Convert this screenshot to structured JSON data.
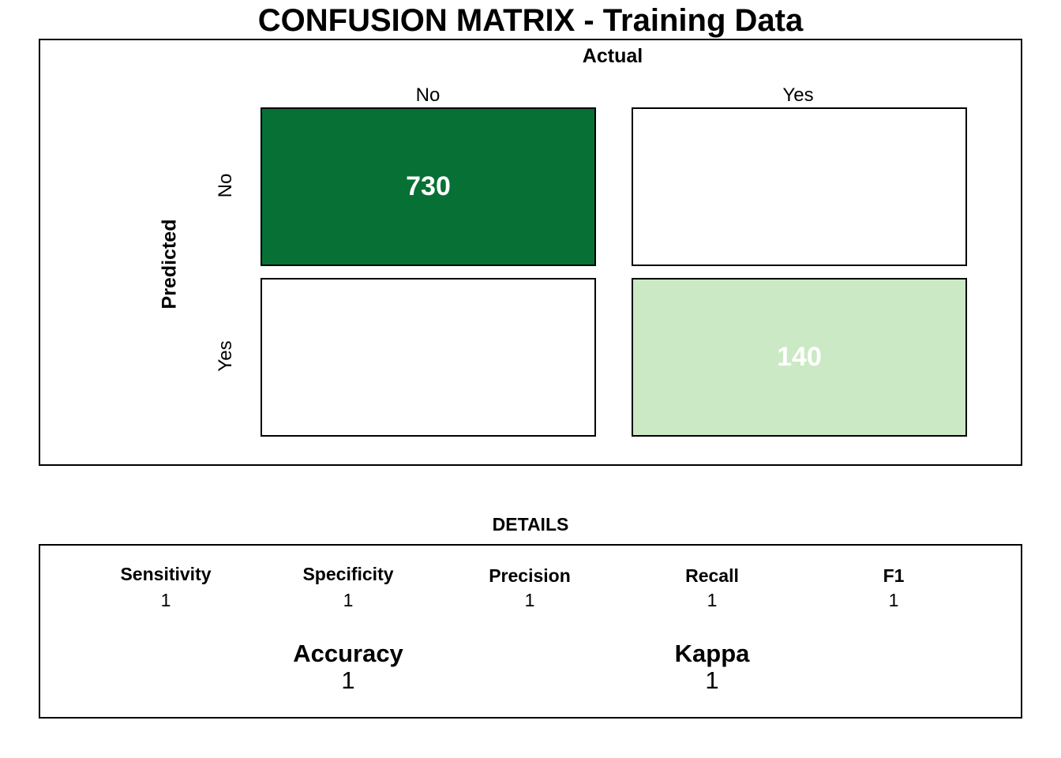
{
  "title": "CONFUSION MATRIX - Training Data",
  "matrix": {
    "actual_label": "Actual",
    "predicted_label": "Predicted",
    "col_labels": [
      "No",
      "Yes"
    ],
    "row_labels": [
      "No",
      "Yes"
    ],
    "colors": {
      "high": "#077035",
      "low": "#cbe9c4",
      "empty": "#ffffff"
    }
  },
  "chart_data": {
    "type": "heatmap",
    "title": "CONFUSION MATRIX - Training Data",
    "xlabel": "Actual",
    "ylabel": "Predicted",
    "x_categories": [
      "No",
      "Yes"
    ],
    "y_categories": [
      "No",
      "Yes"
    ],
    "cells": [
      {
        "predicted": "No",
        "actual": "No",
        "value": 730,
        "color": "#077035"
      },
      {
        "predicted": "No",
        "actual": "Yes",
        "value": null,
        "color": "#ffffff"
      },
      {
        "predicted": "Yes",
        "actual": "No",
        "value": null,
        "color": "#ffffff"
      },
      {
        "predicted": "Yes",
        "actual": "Yes",
        "value": 140,
        "color": "#cbe9c4"
      }
    ],
    "cell_labels": [
      "730",
      "140"
    ]
  },
  "details": {
    "title": "DETAILS",
    "metrics": [
      {
        "name": "Sensitivity",
        "value": "1"
      },
      {
        "name": "Specificity",
        "value": "1"
      },
      {
        "name": "Precision",
        "value": "1"
      },
      {
        "name": "Recall",
        "value": "1"
      },
      {
        "name": "F1",
        "value": "1"
      }
    ],
    "summary": [
      {
        "name": "Accuracy",
        "value": "1"
      },
      {
        "name": "Kappa",
        "value": "1"
      }
    ]
  }
}
